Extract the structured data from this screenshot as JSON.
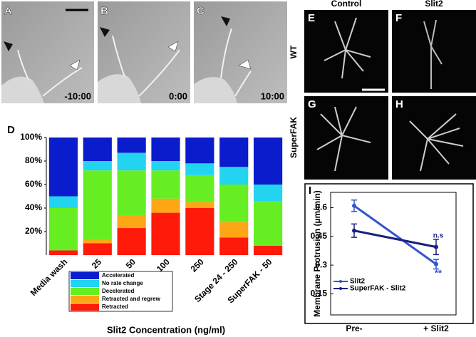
{
  "panels": {
    "timelapse": [
      {
        "label": "A",
        "time": "-10:00"
      },
      {
        "label": "B",
        "time": "0:00"
      },
      {
        "label": "C",
        "time": "10:00"
      }
    ],
    "columns": [
      "Control",
      "Slit2"
    ],
    "rows": [
      "WT",
      "SuperFAK"
    ],
    "grid": [
      "E",
      "F",
      "G",
      "H"
    ]
  },
  "chart_data": [
    {
      "type": "stacked-bar",
      "label": "D",
      "categories": [
        "Media wash",
        "25",
        "50",
        "100",
        "250",
        "Stage 24 - 250",
        "SuperFAK - 50"
      ],
      "xlabel": "Slit2 Concentration (ng/ml)",
      "series": [
        {
          "name": "Retracted",
          "color": "#ff1a0a",
          "values": [
            4,
            10,
            23,
            36,
            40,
            15,
            8
          ]
        },
        {
          "name": "Retracted and regrew",
          "color": "#ffa617",
          "values": [
            0,
            3,
            11,
            12,
            5,
            13,
            0
          ]
        },
        {
          "name": "Decelerated",
          "color": "#66ee22",
          "values": [
            36,
            59,
            38,
            24,
            23,
            32,
            38
          ]
        },
        {
          "name": "No rate change",
          "color": "#22d4f0",
          "values": [
            10,
            8,
            15,
            8,
            10,
            15,
            14
          ]
        },
        {
          "name": "Accelerated",
          "color": "#0a1ccc",
          "values": [
            50,
            20,
            13,
            20,
            22,
            25,
            40
          ]
        }
      ],
      "ylim": [
        0,
        100
      ],
      "yticks": [
        {
          "value": 20,
          "label": "20%"
        },
        {
          "value": 40,
          "label": "40%"
        },
        {
          "value": 60,
          "label": "60%"
        },
        {
          "value": 80,
          "label": "80%"
        },
        {
          "value": 100,
          "label": "100%"
        }
      ],
      "legend": "bottom"
    },
    {
      "type": "line",
      "label": "I",
      "categories": [
        "Pre-",
        "+ Slit2"
      ],
      "ylabel": "Membrane Protrusion (µm/min)",
      "series": [
        {
          "name": "Slit2",
          "color": "#3355cc",
          "values": [
            0.61,
            0.305
          ],
          "errors": [
            0.03,
            0.025
          ]
        },
        {
          "name": "SuperFAK - Slit2",
          "color": "#1a2080",
          "values": [
            0.48,
            0.395
          ],
          "errors": [
            0.035,
            0.04
          ]
        }
      ],
      "annotations": [
        "n.s",
        "**"
      ],
      "ylim": [
        0.04,
        0.68
      ],
      "yticks": [
        0.15,
        0.3,
        0.45,
        0.6
      ],
      "legend": "lower-left"
    }
  ]
}
